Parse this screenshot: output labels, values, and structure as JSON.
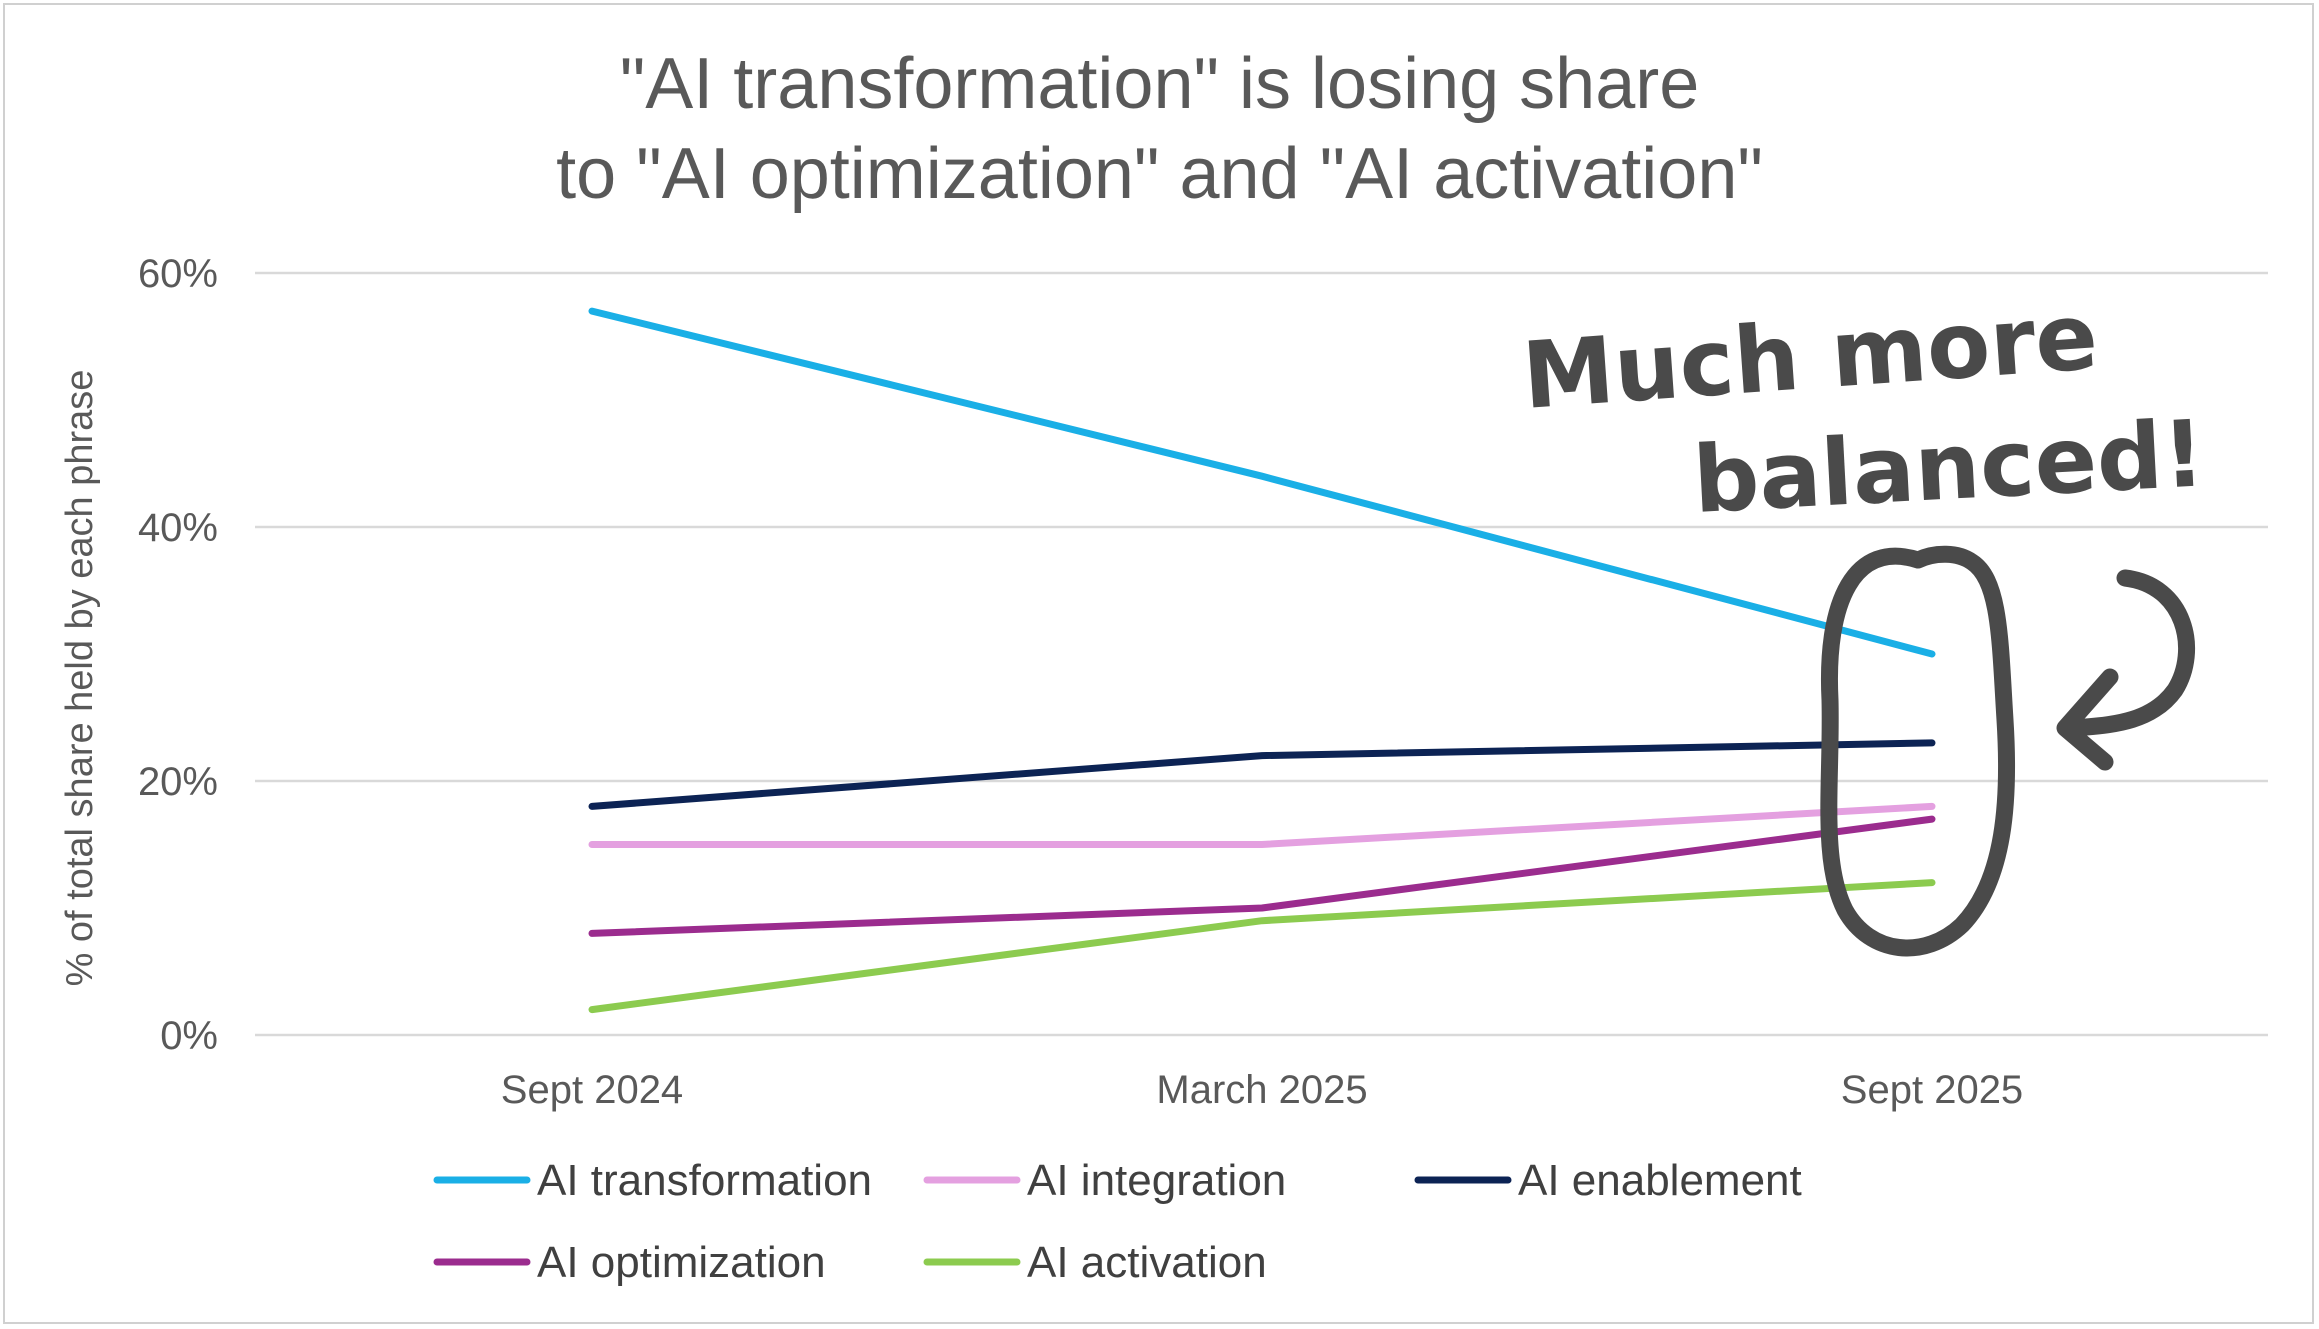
{
  "chart_data": {
    "type": "line",
    "title": [
      "\"AI transformation\" is losing share",
      "to \"AI optimization\" and \"AI activation\""
    ],
    "xlabel": "",
    "ylabel": "% of total share held by each phrase",
    "categories": [
      "Sept 2024",
      "March 2025",
      "Sept 2025"
    ],
    "ylim": [
      0,
      60
    ],
    "yticks": [
      0,
      20,
      40,
      60
    ],
    "ytick_labels": [
      "0%",
      "20%",
      "40%",
      "60%"
    ],
    "grid": true,
    "legend_position": "bottom",
    "series": [
      {
        "name": "AI transformation",
        "color": "#1AAFE6",
        "values": [
          57,
          44,
          30
        ]
      },
      {
        "name": "AI integration",
        "color": "#E4A0E0",
        "values": [
          15,
          15,
          18
        ]
      },
      {
        "name": "AI enablement",
        "color": "#0C2354",
        "values": [
          18,
          22,
          23
        ]
      },
      {
        "name": "AI optimization",
        "color": "#9B2C8E",
        "values": [
          8,
          10,
          17
        ]
      },
      {
        "name": "AI activation",
        "color": "#8CCB4F",
        "values": [
          2,
          9,
          12
        ]
      }
    ],
    "annotation": {
      "lines": [
        "Much more",
        "balanced!"
      ],
      "target": "Sept 2025",
      "color": "#4a4a4a"
    }
  }
}
